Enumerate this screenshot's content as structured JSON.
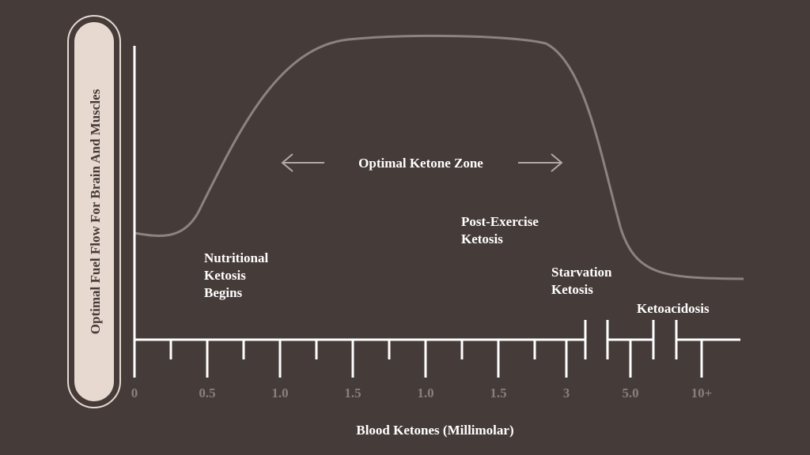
{
  "y_axis_label": "Optimal Fuel Flow For Brain And Muscles",
  "x_axis_label": "Blood Ketones (Millimolar)",
  "x_tick_labels": [
    "0",
    "0.5",
    "1.0",
    "1.5",
    "1.0",
    "1.5",
    "3",
    "5.0",
    "10+"
  ],
  "zone_label": "Optimal Ketone Zone",
  "annotations": [
    {
      "lines": [
        "Nutritional",
        "Ketosis",
        "Begins"
      ]
    },
    {
      "lines": [
        "Post-Exercise",
        "Ketosis"
      ]
    },
    {
      "lines": [
        "Starvation",
        "Ketosis"
      ]
    },
    {
      "lines": [
        "Ketoacidosis"
      ]
    }
  ]
}
